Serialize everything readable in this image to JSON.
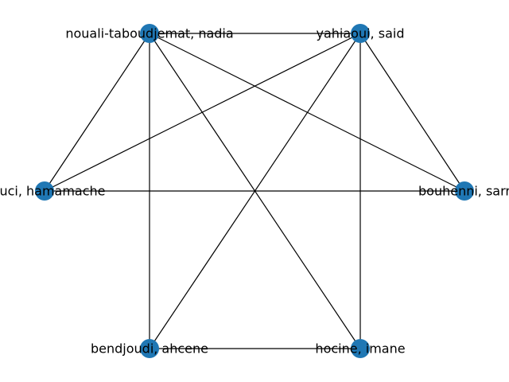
{
  "graph": {
    "node_color": "#1f77b4",
    "edge_color": "#000000",
    "nodes": [
      {
        "id": "nadia",
        "label": "nouali-taboudjemat, nadia"
      },
      {
        "id": "said",
        "label": "yahiaoui, said"
      },
      {
        "id": "hamamache",
        "label": "douci, hamamache"
      },
      {
        "id": "sarr",
        "label": "bouhenni, sarr"
      },
      {
        "id": "ahcene",
        "label": "bendjoudi, ahcene"
      },
      {
        "id": "imane",
        "label": "hocine, imane"
      }
    ],
    "edges": [
      [
        "nadia",
        "said"
      ],
      [
        "nadia",
        "hamamache"
      ],
      [
        "nadia",
        "sarr"
      ],
      [
        "nadia",
        "ahcene"
      ],
      [
        "nadia",
        "imane"
      ],
      [
        "said",
        "hamamache"
      ],
      [
        "said",
        "sarr"
      ],
      [
        "said",
        "ahcene"
      ],
      [
        "said",
        "imane"
      ],
      [
        "hamamache",
        "sarr"
      ],
      [
        "ahcene",
        "imane"
      ]
    ]
  }
}
